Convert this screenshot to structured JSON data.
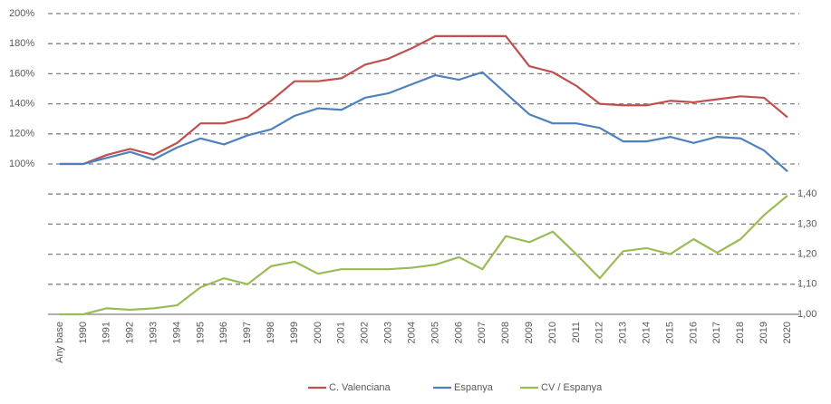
{
  "chart_data": {
    "type": "line",
    "categories": [
      "Any base",
      "1990",
      "1991",
      "1992",
      "1993",
      "1994",
      "1995",
      "1996",
      "1997",
      "1998",
      "1999",
      "2000",
      "2001",
      "2002",
      "2003",
      "2004",
      "2005",
      "2006",
      "2007",
      "2008",
      "2009",
      "2010",
      "2011",
      "2012",
      "2013",
      "2014",
      "2015",
      "2016",
      "2017",
      "2018",
      "2019",
      "2020"
    ],
    "series": [
      {
        "name": "C. Valenciana",
        "color": "#c0504d",
        "values": [
          100,
          100,
          106,
          110,
          106,
          114,
          127,
          127,
          131,
          142,
          155,
          155,
          157,
          166,
          170,
          177,
          185,
          185,
          185,
          185,
          165,
          161,
          152,
          140,
          139,
          139,
          142,
          141,
          143,
          145,
          144,
          131
        ]
      },
      {
        "name": "Espanya",
        "color": "#4f81bd",
        "values": [
          100,
          100,
          104,
          108,
          103,
          111,
          117,
          113,
          119,
          123,
          132,
          137,
          136,
          144,
          147,
          153,
          159,
          156,
          161,
          147,
          133,
          127,
          127,
          124,
          115,
          115,
          118,
          114,
          118,
          117,
          109,
          95
        ]
      },
      {
        "name": "CV / Espanya",
        "color": "#9bbb59",
        "axis": "y2",
        "values": [
          1.0,
          1.0,
          1.02,
          1.015,
          1.02,
          1.03,
          1.09,
          1.12,
          1.1,
          1.16,
          1.175,
          1.135,
          1.15,
          1.15,
          1.15,
          1.155,
          1.165,
          1.19,
          1.15,
          1.26,
          1.24,
          1.275,
          1.2,
          1.12,
          1.21,
          1.22,
          1.2,
          1.25,
          1.205,
          1.25,
          1.33,
          1.395
        ]
      }
    ],
    "ylim": [
      0,
      200
    ],
    "yticks": [
      {
        "value": 100,
        "label": "100%"
      },
      {
        "value": 120,
        "label": "120%"
      },
      {
        "value": 140,
        "label": "140%"
      },
      {
        "value": 160,
        "label": "160%"
      },
      {
        "value": 180,
        "label": "180%"
      },
      {
        "value": 200,
        "label": "200%"
      }
    ],
    "y2lim": [
      1.0,
      2.0
    ],
    "y2ticks": [
      {
        "value": 1.0,
        "label": "1,00"
      },
      {
        "value": 1.1,
        "label": "1,10"
      },
      {
        "value": 1.2,
        "label": "1,20"
      },
      {
        "value": 1.3,
        "label": "1,30"
      },
      {
        "value": 1.4,
        "label": "1,40"
      }
    ],
    "grid": true,
    "legend": "bottom"
  }
}
